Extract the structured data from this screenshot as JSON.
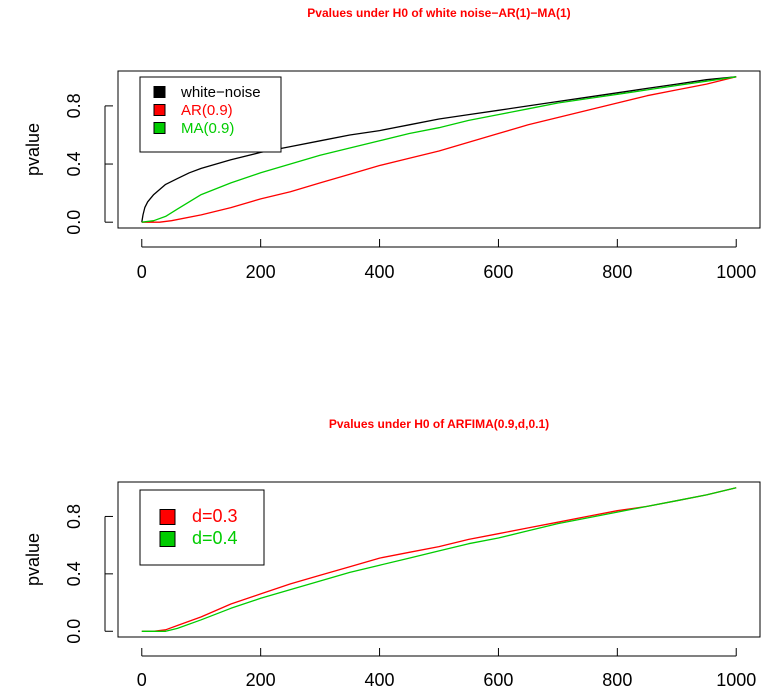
{
  "chart_data": [
    {
      "type": "line",
      "title": "Pvalues under H0 of white noise−AR(1)−MA(1)",
      "title_color": "#ff0000",
      "xlabel": "",
      "ylabel": "pvalue",
      "xlim": [
        0,
        1000
      ],
      "ylim": [
        0,
        1
      ],
      "xticks": [
        0,
        200,
        400,
        600,
        800,
        1000
      ],
      "xtick_labels": [
        "0",
        "200",
        "400",
        "600",
        "800",
        "1000"
      ],
      "yticks": [
        0,
        0.4,
        0.8
      ],
      "ytick_labels": [
        "0.0",
        "0.4",
        "0.8"
      ],
      "grid": false,
      "legend_placement": "top-left",
      "series": [
        {
          "name": "white−noise",
          "color": "#000000",
          "x": [
            0,
            2,
            5,
            10,
            20,
            40,
            60,
            80,
            100,
            150,
            200,
            250,
            300,
            350,
            400,
            450,
            500,
            550,
            600,
            650,
            700,
            750,
            800,
            850,
            900,
            950,
            1000
          ],
          "values": [
            0.0,
            0.05,
            0.1,
            0.14,
            0.19,
            0.26,
            0.3,
            0.34,
            0.37,
            0.43,
            0.48,
            0.52,
            0.56,
            0.6,
            0.63,
            0.67,
            0.71,
            0.74,
            0.77,
            0.8,
            0.83,
            0.86,
            0.89,
            0.92,
            0.95,
            0.98,
            1.0
          ]
        },
        {
          "name": "AR(0.9)",
          "color": "#ff0000",
          "x": [
            0,
            30,
            50,
            100,
            150,
            200,
            250,
            300,
            350,
            400,
            450,
            500,
            550,
            600,
            650,
            700,
            750,
            800,
            850,
            900,
            950,
            1000
          ],
          "values": [
            0.0,
            0.0,
            0.01,
            0.05,
            0.1,
            0.16,
            0.21,
            0.27,
            0.33,
            0.39,
            0.44,
            0.49,
            0.55,
            0.61,
            0.67,
            0.72,
            0.77,
            0.82,
            0.87,
            0.91,
            0.95,
            1.0
          ]
        },
        {
          "name": "MA(0.9)",
          "color": "#00cc00",
          "x": [
            0,
            20,
            40,
            60,
            80,
            100,
            150,
            200,
            250,
            300,
            350,
            400,
            450,
            500,
            550,
            600,
            650,
            700,
            750,
            800,
            850,
            900,
            950,
            1000
          ],
          "values": [
            0.0,
            0.01,
            0.04,
            0.09,
            0.14,
            0.19,
            0.27,
            0.34,
            0.4,
            0.46,
            0.51,
            0.56,
            0.61,
            0.65,
            0.7,
            0.74,
            0.78,
            0.82,
            0.85,
            0.88,
            0.91,
            0.94,
            0.97,
            1.0
          ]
        }
      ]
    },
    {
      "type": "line",
      "title": "Pvalues under H0 of ARFIMA(0.9,d,0.1)",
      "title_color": "#ff0000",
      "xlabel": "",
      "ylabel": "pvalue",
      "xlim": [
        0,
        1000
      ],
      "ylim": [
        0,
        1
      ],
      "xticks": [
        0,
        200,
        400,
        600,
        800,
        1000
      ],
      "xtick_labels": [
        "0",
        "200",
        "400",
        "600",
        "800",
        "1000"
      ],
      "yticks": [
        0,
        0.4,
        0.8
      ],
      "ytick_labels": [
        "0.0",
        "0.4",
        "0.8"
      ],
      "grid": false,
      "legend_placement": "top-left",
      "series": [
        {
          "name": "d=0.3",
          "color": "#ff0000",
          "x": [
            0,
            20,
            40,
            60,
            100,
            150,
            200,
            250,
            300,
            350,
            400,
            450,
            500,
            550,
            600,
            650,
            700,
            750,
            800,
            850,
            900,
            950,
            1000
          ],
          "values": [
            0.0,
            0.0,
            0.01,
            0.04,
            0.1,
            0.19,
            0.26,
            0.33,
            0.39,
            0.45,
            0.51,
            0.55,
            0.59,
            0.64,
            0.68,
            0.72,
            0.76,
            0.8,
            0.84,
            0.87,
            0.91,
            0.95,
            1.0
          ]
        },
        {
          "name": "d=0.4",
          "color": "#00cc00",
          "x": [
            0,
            20,
            40,
            60,
            100,
            150,
            200,
            250,
            300,
            350,
            400,
            450,
            500,
            550,
            600,
            650,
            700,
            750,
            800,
            850,
            900,
            950,
            1000
          ],
          "values": [
            0.0,
            0.0,
            0.0,
            0.02,
            0.08,
            0.16,
            0.23,
            0.29,
            0.35,
            0.41,
            0.46,
            0.51,
            0.56,
            0.61,
            0.65,
            0.7,
            0.75,
            0.79,
            0.83,
            0.87,
            0.91,
            0.95,
            1.0
          ]
        }
      ]
    }
  ]
}
